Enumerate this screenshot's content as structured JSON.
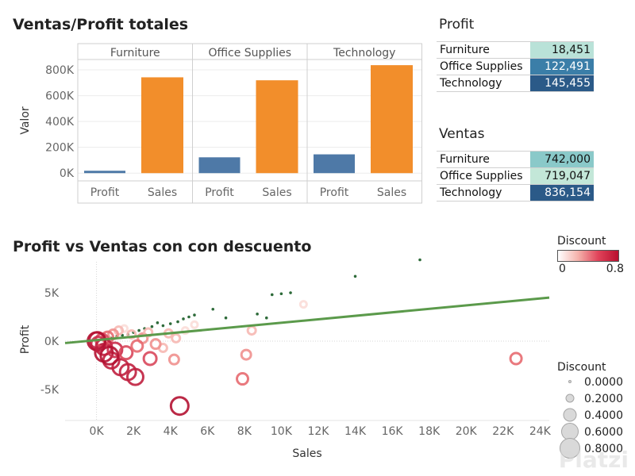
{
  "chart_data": [
    {
      "type": "bar",
      "title": "Ventas/Profit totales",
      "ylabel": "Valor",
      "ylim": [
        -60000,
        880000
      ],
      "yticks": [
        0,
        200000,
        400000,
        600000,
        800000
      ],
      "ytick_labels": [
        "0K",
        "200K",
        "400K",
        "600K",
        "800K"
      ],
      "panels": [
        "Furniture",
        "Office Supplies",
        "Technology"
      ],
      "categories": [
        "Profit",
        "Sales"
      ],
      "values": [
        [
          18451,
          742000
        ],
        [
          122491,
          719047
        ],
        [
          145455,
          836154
        ]
      ],
      "colors": {
        "Profit": "#4e79a7",
        "Sales": "#f28e2b"
      }
    },
    {
      "type": "table",
      "title": "Profit",
      "rows": [
        {
          "label": "Furniture",
          "value": "18,451",
          "color": "#b9e2d8",
          "text_color": "#111111"
        },
        {
          "label": "Office Supplies",
          "value": "122,491",
          "color": "#3b7ea8",
          "text_color": "#ffffff"
        },
        {
          "label": "Technology",
          "value": "145,455",
          "color": "#2b5a88",
          "text_color": "#ffffff"
        }
      ]
    },
    {
      "type": "table",
      "title": "Ventas",
      "rows": [
        {
          "label": "Furniture",
          "value": "742,000",
          "color": "#8ac9c9",
          "text_color": "#111111"
        },
        {
          "label": "Office Supplies",
          "value": "719,047",
          "color": "#c3e7d8",
          "text_color": "#111111"
        },
        {
          "label": "Technology",
          "value": "836,154",
          "color": "#2b5a88",
          "text_color": "#ffffff"
        }
      ]
    },
    {
      "type": "scatter",
      "title": "Profit vs Ventas con con descuento",
      "xlabel": "Sales",
      "ylabel": "Profit",
      "xlim": [
        -1700,
        24500
      ],
      "ylim": [
        -8200,
        8200
      ],
      "xticks": [
        0,
        2000,
        4000,
        6000,
        8000,
        10000,
        12000,
        14000,
        16000,
        18000,
        20000,
        22000,
        24000
      ],
      "xtick_labels": [
        "0K",
        "2K",
        "4K",
        "6K",
        "8K",
        "10K",
        "12K",
        "14K",
        "16K",
        "18K",
        "20K",
        "22K",
        "24K"
      ],
      "yticks": [
        -5000,
        0,
        5000
      ],
      "ytick_labels": [
        "-5K",
        "0K",
        "5K"
      ],
      "trend_line": {
        "x": [
          -1700,
          24500
        ],
        "y": [
          -200,
          4500
        ],
        "color": "#5b9a4b"
      },
      "points": [
        {
          "x": 17500,
          "y": 8400,
          "d": 0
        },
        {
          "x": 14000,
          "y": 6700,
          "d": 0
        },
        {
          "x": 10500,
          "y": 5000,
          "d": 0
        },
        {
          "x": 10000,
          "y": 4900,
          "d": 0
        },
        {
          "x": 9500,
          "y": 4800,
          "d": 0
        },
        {
          "x": 8700,
          "y": 2800,
          "d": 0
        },
        {
          "x": 9200,
          "y": 2400,
          "d": 0
        },
        {
          "x": 7000,
          "y": 2400,
          "d": 0
        },
        {
          "x": 6300,
          "y": 3300,
          "d": 0
        },
        {
          "x": 5300,
          "y": 2700,
          "d": 0
        },
        {
          "x": 5000,
          "y": 2500,
          "d": 0
        },
        {
          "x": 4700,
          "y": 2300,
          "d": 0
        },
        {
          "x": 4400,
          "y": 2000,
          "d": 0
        },
        {
          "x": 4000,
          "y": 1800,
          "d": 0
        },
        {
          "x": 3600,
          "y": 1600,
          "d": 0
        },
        {
          "x": 3300,
          "y": 1900,
          "d": 0
        },
        {
          "x": 3000,
          "y": 1500,
          "d": 0
        },
        {
          "x": 2600,
          "y": 1300,
          "d": 0
        },
        {
          "x": 2300,
          "y": 1100,
          "d": 0
        },
        {
          "x": 2000,
          "y": 900,
          "d": 0
        },
        {
          "x": 1700,
          "y": 700,
          "d": 0
        },
        {
          "x": 1400,
          "y": 600,
          "d": 0
        },
        {
          "x": 1100,
          "y": 500,
          "d": 0
        },
        {
          "x": 800,
          "y": 300,
          "d": 0
        },
        {
          "x": 500,
          "y": 200,
          "d": 0
        },
        {
          "x": 11200,
          "y": 3800,
          "d": 0.1
        },
        {
          "x": 8400,
          "y": 1100,
          "d": 0.2
        },
        {
          "x": 8100,
          "y": -1400,
          "d": 0.3
        },
        {
          "x": 7900,
          "y": -3900,
          "d": 0.4
        },
        {
          "x": 22700,
          "y": -1800,
          "d": 0.4
        },
        {
          "x": 4500,
          "y": -6700,
          "d": 0.8
        },
        {
          "x": 2100,
          "y": -3700,
          "d": 0.7
        },
        {
          "x": 1700,
          "y": -3200,
          "d": 0.7
        },
        {
          "x": 1300,
          "y": -2700,
          "d": 0.7
        },
        {
          "x": 800,
          "y": -2000,
          "d": 0.7
        },
        {
          "x": 400,
          "y": -1200,
          "d": 0.8
        },
        {
          "x": 2900,
          "y": -1800,
          "d": 0.5
        },
        {
          "x": 4200,
          "y": -1900,
          "d": 0.3
        },
        {
          "x": 3600,
          "y": -700,
          "d": 0.2
        },
        {
          "x": 4800,
          "y": 1100,
          "d": 0.1
        },
        {
          "x": 5300,
          "y": 1700,
          "d": 0.1
        },
        {
          "x": 4300,
          "y": 300,
          "d": 0.2
        },
        {
          "x": 2500,
          "y": 300,
          "d": 0.3
        },
        {
          "x": 1900,
          "y": 700,
          "d": 0.2
        },
        {
          "x": 1500,
          "y": 1300,
          "d": 0.1
        },
        {
          "x": 1200,
          "y": 1100,
          "d": 0.2
        },
        {
          "x": 900,
          "y": 700,
          "d": 0.3
        },
        {
          "x": 600,
          "y": 400,
          "d": 0.4
        },
        {
          "x": 300,
          "y": 100,
          "d": 0.5
        },
        {
          "x": 100,
          "y": -300,
          "d": 0.6
        },
        {
          "x": 50,
          "y": 100,
          "d": 0.7
        },
        {
          "x": 0,
          "y": 0,
          "d": 0.8
        },
        {
          "x": 400,
          "y": -600,
          "d": 0.7
        },
        {
          "x": 1000,
          "y": -900,
          "d": 0.6
        },
        {
          "x": 1600,
          "y": -1200,
          "d": 0.5
        },
        {
          "x": 2200,
          "y": -500,
          "d": 0.4
        },
        {
          "x": 3200,
          "y": -300,
          "d": 0.3
        },
        {
          "x": 3900,
          "y": 800,
          "d": 0.2
        },
        {
          "x": 2800,
          "y": 900,
          "d": 0.2
        },
        {
          "x": 700,
          "y": -1500,
          "d": 0.8
        }
      ],
      "color_legend": {
        "title": "Discount",
        "min_label": "0",
        "max_label": "0.8"
      },
      "size_legend": {
        "title": "Discount",
        "items": [
          "0.0000",
          "0.2000",
          "0.4000",
          "0.6000",
          "0.8000"
        ]
      }
    }
  ],
  "watermark": "Platzi"
}
